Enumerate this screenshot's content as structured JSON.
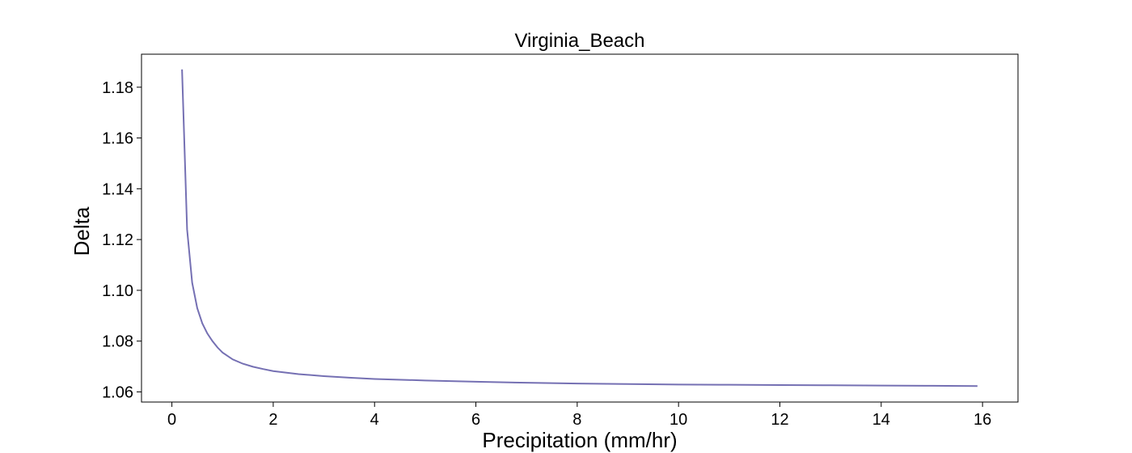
{
  "chart_data": {
    "type": "line",
    "title": "Virginia_Beach",
    "xlabel": "Precipitation (mm/hr)",
    "ylabel": "Delta",
    "xlim": [
      -0.6,
      16.7
    ],
    "ylim": [
      1.056,
      1.193
    ],
    "xticks": [
      0,
      2,
      4,
      6,
      8,
      10,
      12,
      14,
      16
    ],
    "yticks": [
      1.06,
      1.08,
      1.1,
      1.12,
      1.14,
      1.16,
      1.18
    ],
    "ytick_labels": [
      "1.06",
      "1.08",
      "1.10",
      "1.12",
      "1.14",
      "1.16",
      "1.18"
    ],
    "grid": false,
    "series": [
      {
        "color": "#7570b3",
        "x": [
          0.2,
          0.3,
          0.4,
          0.5,
          0.6,
          0.7,
          0.8,
          0.9,
          1.0,
          1.2,
          1.4,
          1.6,
          1.8,
          2.0,
          2.5,
          3.0,
          3.5,
          4.0,
          5.0,
          6.0,
          7.0,
          8.0,
          9.0,
          10.0,
          11.0,
          12.0,
          13.0,
          14.0,
          15.0,
          15.9
        ],
        "y": [
          1.187,
          1.124,
          1.103,
          1.093,
          1.087,
          1.083,
          1.08,
          1.0775,
          1.0755,
          1.0728,
          1.0711,
          1.0699,
          1.069,
          1.0682,
          1.067,
          1.0662,
          1.0656,
          1.0651,
          1.0645,
          1.064,
          1.0636,
          1.0633,
          1.0631,
          1.0629,
          1.0628,
          1.0627,
          1.0626,
          1.0625,
          1.0624,
          1.0623
        ]
      }
    ]
  }
}
